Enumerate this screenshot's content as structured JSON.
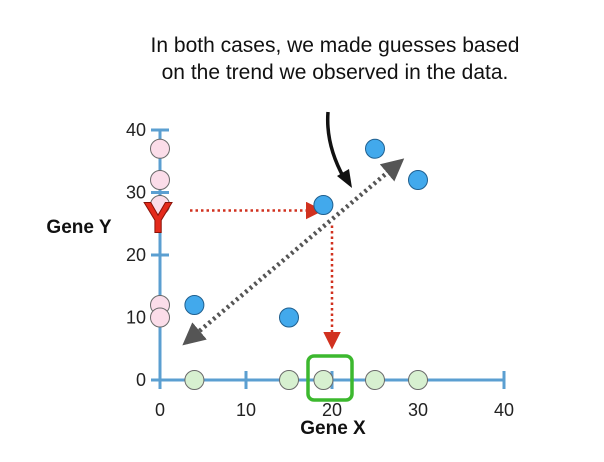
{
  "chart_data": {
    "type": "scatter",
    "title": "",
    "xlabel": "Gene X",
    "ylabel": "Gene Y",
    "xlim": [
      0,
      40
    ],
    "ylim": [
      0,
      40
    ],
    "x_ticks": [
      0,
      10,
      20,
      30,
      40
    ],
    "y_ticks": [
      0,
      10,
      20,
      30,
      40
    ],
    "grid": false,
    "annotation": "In both cases, we made guesses based on the trend we observed in the data.",
    "guess_marker": "Y",
    "points": [
      {
        "x": 4,
        "y": 12
      },
      {
        "x": 15,
        "y": 10
      },
      {
        "x": 19,
        "y": 28
      },
      {
        "x": 25,
        "y": 37
      },
      {
        "x": 30,
        "y": 32
      }
    ],
    "x_projection": [
      4,
      15,
      19,
      25,
      30
    ],
    "y_projection": [
      12,
      10,
      28,
      37,
      32
    ],
    "guess": {
      "x": 20,
      "y": 26
    },
    "trend_line": {
      "from": [
        3,
        6
      ],
      "to": [
        28,
        35
      ]
    },
    "colors": {
      "axis": "#5b9fd1",
      "points": "#42a9ec",
      "x_projection": "#d7f0d0",
      "y_projection": "#fbdde9",
      "guess_marker": "#e42a1b",
      "guess_arrow": "#d1311f",
      "highlight_box": "#3cb82e",
      "trend_line": "#555555"
    }
  }
}
